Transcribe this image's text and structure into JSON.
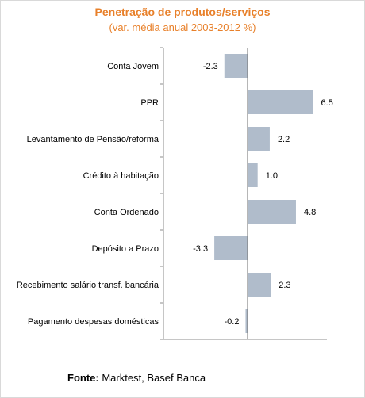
{
  "title": "Penetração de produtos/serviços",
  "subtitle": "(var. média anual 2003-2012  %)",
  "source_label": "Fonte:",
  "source_text": "Marktest, Basef Banca",
  "chart_data": {
    "type": "bar",
    "orientation": "horizontal",
    "categories": [
      "Conta Jovem",
      "PPR",
      "Levantamento de Pensão/reforma",
      "Crédito à habitação",
      "Conta Ordenado",
      "Depósito a Prazo",
      "Recebimento salário transf. bancária",
      "Pagamento despesas domésticas"
    ],
    "values": [
      -2.3,
      6.5,
      2.2,
      1.0,
      4.8,
      -3.3,
      2.3,
      -0.2
    ],
    "value_labels": [
      "-2.3",
      "6.5",
      "2.2",
      "1.0",
      "4.8",
      "-3.3",
      "2.3",
      "-0.2"
    ],
    "bar_color": "#b0bccb",
    "axis_color": "#8c8c8c",
    "xlim": [
      -4,
      7.5
    ],
    "grid": false
  }
}
